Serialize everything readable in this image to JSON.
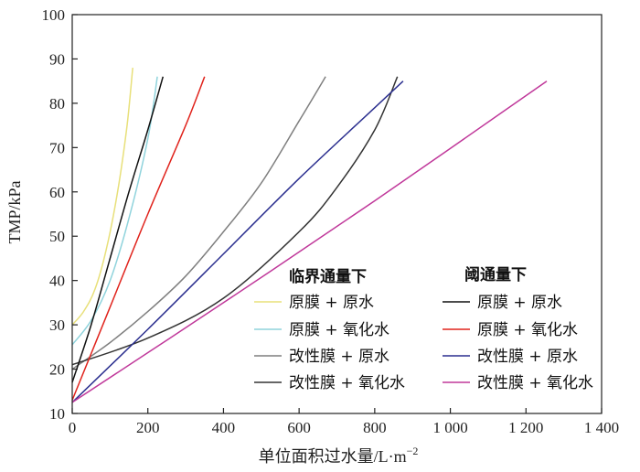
{
  "chart_data": {
    "type": "line",
    "title": "",
    "xlabel": "单位面积过水量/L·m",
    "xlabel_sup": "−2",
    "ylabel": "TMP/kPa",
    "xlim": [
      0,
      1400
    ],
    "ylim": [
      10,
      100
    ],
    "xticks": [
      0,
      200,
      400,
      600,
      800,
      1000,
      1200,
      1400
    ],
    "xtick_labels": [
      "0",
      "200",
      "400",
      "600",
      "800",
      "1 000",
      "1 200",
      "1 400"
    ],
    "yticks": [
      10,
      20,
      30,
      40,
      50,
      60,
      70,
      80,
      90,
      100
    ],
    "ytick_labels": [
      "10",
      "20",
      "30",
      "40",
      "50",
      "60",
      "70",
      "80",
      "90",
      "100"
    ],
    "legend": {
      "position": "bottom-right",
      "group_titles": [
        "临界通量下",
        "阈通量下"
      ]
    },
    "series": [
      {
        "name": "原膜 + 原水",
        "group": "临界通量下",
        "color": "#e8e07a",
        "x": [
          0,
          30,
          60,
          90,
          120,
          145,
          160
        ],
        "y": [
          30,
          33,
          38,
          47,
          60,
          75,
          88
        ]
      },
      {
        "name": "原膜 + 氧化水",
        "group": "临界通量下",
        "color": "#8fd3dc",
        "x": [
          0,
          50,
          100,
          150,
          200,
          225
        ],
        "y": [
          25.5,
          31,
          40,
          54,
          72,
          86
        ]
      },
      {
        "name": "改性膜 + 原水",
        "group": "临界通量下",
        "color": "#7f7f7f",
        "x": [
          0,
          100,
          200,
          300,
          400,
          500,
          600,
          670
        ],
        "y": [
          20,
          26,
          33,
          41,
          51,
          62,
          76,
          86
        ]
      },
      {
        "name": "改性膜 + 氧化水",
        "group": "临界通量下",
        "color": "#333333",
        "x": [
          0,
          200,
          400,
          600,
          700,
          800,
          860
        ],
        "y": [
          21,
          27,
          36,
          51,
          61,
          74,
          86
        ]
      },
      {
        "name": "原膜 + 原水",
        "group": "阈通量下",
        "color": "#111111",
        "x": [
          0,
          50,
          100,
          150,
          200,
          240
        ],
        "y": [
          17,
          30,
          45,
          60,
          74,
          86
        ]
      },
      {
        "name": "原膜 + 氧化水",
        "group": "阈通量下",
        "color": "#e0231c",
        "x": [
          0,
          100,
          200,
          300,
          350
        ],
        "y": [
          13,
          34,
          55,
          75,
          86
        ]
      },
      {
        "name": "改性膜 + 原水",
        "group": "阈通量下",
        "color": "#2b2f8f",
        "x": [
          0,
          200,
          400,
          600,
          800,
          875
        ],
        "y": [
          12.5,
          29,
          46,
          63,
          79,
          85
        ]
      },
      {
        "name": "改性膜 + 氧化水",
        "group": "阈通量下",
        "color": "#c0389a",
        "x": [
          0,
          400,
          800,
          1255
        ],
        "y": [
          12.5,
          35,
          58,
          85
        ]
      }
    ]
  }
}
